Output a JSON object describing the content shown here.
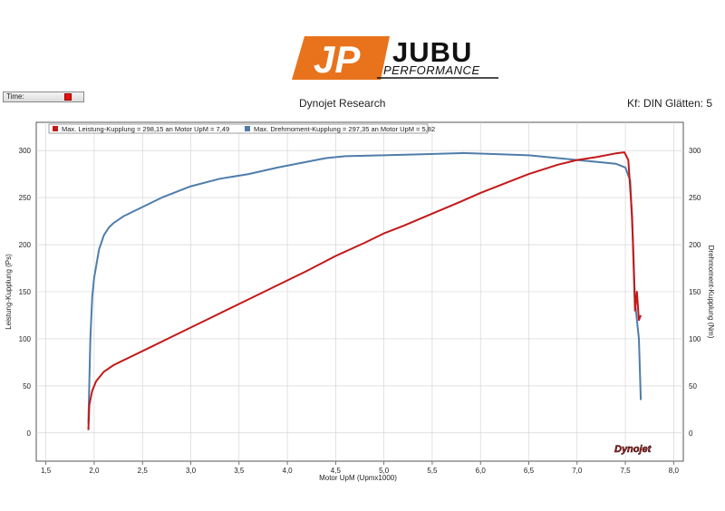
{
  "logo": {
    "mark": "JP",
    "brand": "JUBU",
    "sub": "PERFORMANCE",
    "color": "#e8731c"
  },
  "time_control": {
    "label": "Time:"
  },
  "header": {
    "title": "Dynojet Research",
    "info": "Kf: DIN Glätten: 5"
  },
  "watermark": "Dynojet",
  "chart_data": {
    "type": "line",
    "xlabel": "Motor UpM (Upmx1000)",
    "ylabel_left": "Leistung-Kupplung (Ps)",
    "ylabel_right": "Drehmoment-Kupplung (Nm)",
    "xlim": [
      1.4,
      8.1
    ],
    "ylim": [
      -30,
      330
    ],
    "xticks": [
      "1,5",
      "2,0",
      "2,5",
      "3,0",
      "3,5",
      "4,0",
      "4,5",
      "5,0",
      "5,5",
      "6,0",
      "6,5",
      "7,0",
      "7,5",
      "8,0"
    ],
    "xtick_values": [
      1.5,
      2.0,
      2.5,
      3.0,
      3.5,
      4.0,
      4.5,
      5.0,
      5.5,
      6.0,
      6.5,
      7.0,
      7.5,
      8.0
    ],
    "yticks": [
      "0",
      "50",
      "100",
      "150",
      "200",
      "250",
      "300"
    ],
    "ytick_values": [
      0,
      50,
      100,
      150,
      200,
      250,
      300
    ],
    "grid": true,
    "legend_position": "top-left",
    "series": [
      {
        "name": "Max. Leistung-Kupplung = 298,15 an Motor UpM = 7,49",
        "color": "#c41818",
        "axis": "left",
        "x": [
          1.94,
          1.95,
          1.98,
          2.02,
          2.1,
          2.2,
          2.4,
          2.6,
          2.8,
          3.0,
          3.2,
          3.5,
          3.8,
          4.0,
          4.2,
          4.5,
          4.8,
          5.0,
          5.2,
          5.5,
          5.8,
          6.0,
          6.2,
          6.5,
          6.8,
          7.0,
          7.2,
          7.4,
          7.49,
          7.53,
          7.57,
          7.6,
          7.62,
          7.64,
          7.66
        ],
        "y": [
          3,
          30,
          45,
          55,
          65,
          72,
          82,
          92,
          102,
          112,
          122,
          137,
          152,
          162,
          172,
          188,
          202,
          212,
          220,
          233,
          246,
          255,
          263,
          275,
          285,
          290,
          293,
          297,
          298.15,
          290,
          230,
          130,
          150,
          120,
          125
        ]
      },
      {
        "name": "Max. Drehmoment-Kupplung = 297,35 an Motor UpM = 5,82",
        "color": "#4f7daa",
        "axis": "right",
        "x": [
          1.94,
          1.96,
          1.98,
          2.0,
          2.05,
          2.1,
          2.15,
          2.2,
          2.3,
          2.5,
          2.7,
          3.0,
          3.3,
          3.6,
          3.9,
          4.2,
          4.4,
          4.6,
          5.0,
          5.4,
          5.82,
          6.2,
          6.5,
          6.8,
          7.0,
          7.2,
          7.4,
          7.5,
          7.55,
          7.58,
          7.6,
          7.62,
          7.64,
          7.66
        ],
        "y": [
          10,
          100,
          145,
          165,
          195,
          210,
          218,
          223,
          230,
          240,
          250,
          262,
          270,
          275,
          282,
          288,
          292,
          294,
          295,
          296,
          297.35,
          296,
          295,
          292,
          290,
          288,
          286,
          282,
          268,
          200,
          140,
          120,
          100,
          35
        ]
      }
    ]
  }
}
